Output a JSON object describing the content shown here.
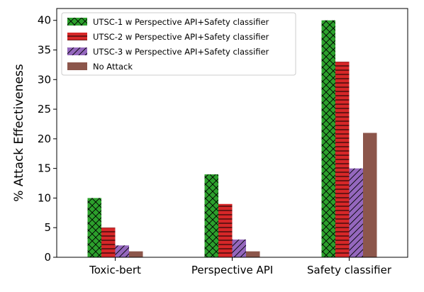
{
  "chart_data": {
    "type": "bar",
    "categories": [
      "Toxic-bert",
      "Perspective API",
      "Safety classifier"
    ],
    "series": [
      {
        "name": "UTSC-1 w Perspective API+Safety classifier",
        "values": [
          10,
          14,
          40
        ],
        "color": "#2ca02c",
        "hatch": "cross"
      },
      {
        "name": "UTSC-2 w Perspective API+Safety classifier",
        "values": [
          5,
          9,
          33
        ],
        "color": "#d62728",
        "hatch": "horizontal"
      },
      {
        "name": "UTSC-3 w Perspective API+Safety classifier",
        "values": [
          2,
          3,
          15
        ],
        "color": "#9467bd",
        "hatch": "diagonal"
      },
      {
        "name": "No Attack",
        "values": [
          1,
          1,
          21
        ],
        "color": "#8c564b",
        "hatch": "none"
      }
    ],
    "ylabel": "% Attack Effectiveness",
    "xlabel": "",
    "ylim": [
      0,
      42
    ],
    "yticks": [
      0,
      5,
      10,
      15,
      20,
      25,
      30,
      35,
      40
    ],
    "legend_position": "top-left",
    "grid": false
  }
}
